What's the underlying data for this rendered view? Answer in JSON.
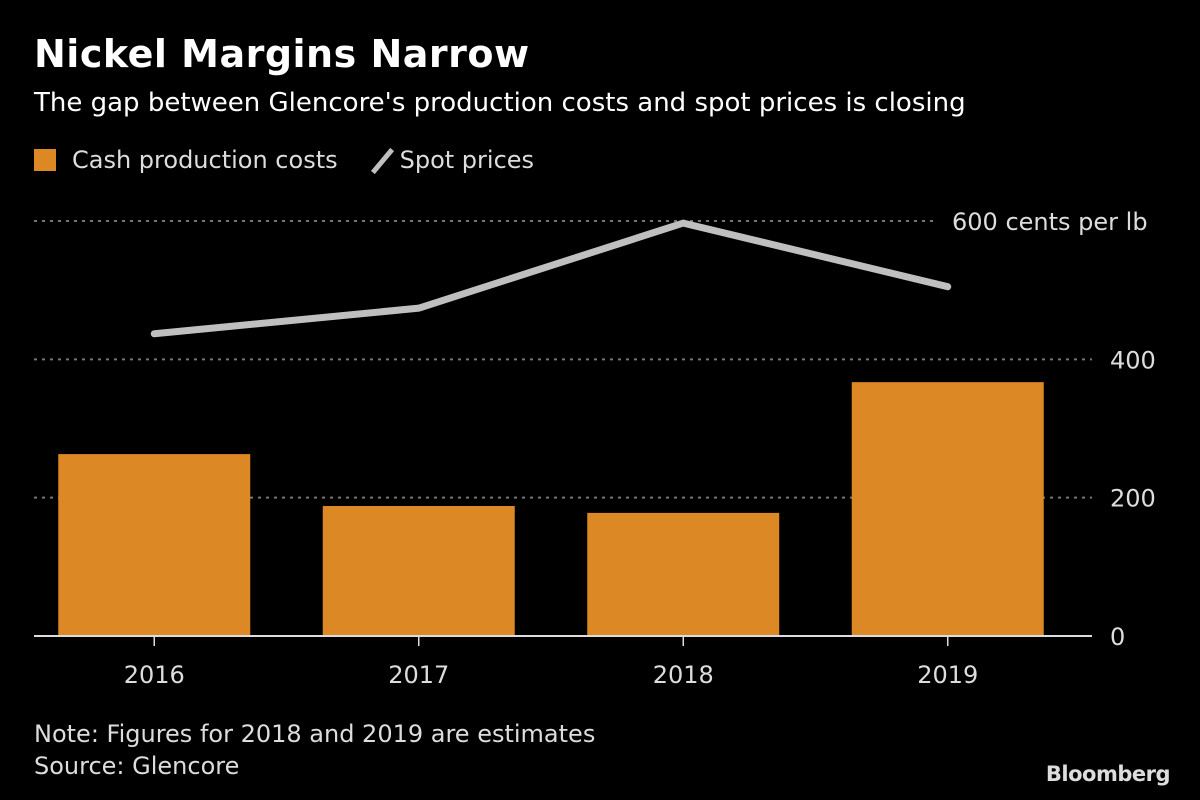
{
  "header": {
    "title": "Nickel Margins Narrow",
    "subtitle": "The gap between Glencore's production costs and spot prices is closing"
  },
  "legend": {
    "items": [
      {
        "label": "Cash production costs",
        "type": "bar",
        "color": "#dc8925"
      },
      {
        "label": "Spot prices",
        "type": "line",
        "color": "#bfbfbf"
      }
    ]
  },
  "chart_data": {
    "type": "bar",
    "title": "Nickel Margins Narrow",
    "subtitle": "The gap between Glencore's production costs and spot prices is closing",
    "categories": [
      "2016",
      "2017",
      "2018",
      "2019"
    ],
    "series": [
      {
        "name": "Cash production costs",
        "type": "bar",
        "color": "#dc8925",
        "values": [
          263,
          188,
          178,
          367
        ]
      },
      {
        "name": "Spot prices",
        "type": "line",
        "color": "#bfbfbf",
        "values": [
          437,
          474,
          597,
          505
        ]
      }
    ],
    "xlabel": "",
    "ylabel": "cents per lb",
    "ylim": [
      0,
      600
    ],
    "yticks": [
      0,
      200,
      400,
      600
    ],
    "ytick_labels": [
      "0",
      "200",
      "400",
      "600 cents per lb"
    ],
    "grid": true,
    "legend_position": "top-left",
    "y_axis_position": "right"
  },
  "footer": {
    "note": "Note: Figures for 2018 and 2019 are estimates",
    "source": "Source: Glencore",
    "brand": "Bloomberg"
  }
}
